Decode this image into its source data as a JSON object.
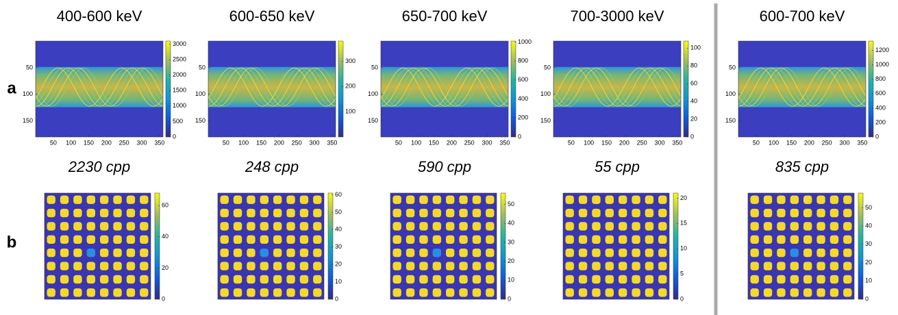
{
  "row_labels": [
    "a",
    "b"
  ],
  "columns": [
    {
      "title": "400-600 keV",
      "sinogram": {
        "xlim": [
          0,
          360
        ],
        "ylim": [
          0,
          180
        ],
        "xticks": [
          50,
          100,
          150,
          200,
          250,
          300,
          350
        ],
        "yticks": [
          50,
          100,
          150
        ],
        "colorbar": {
          "lim": [
            0,
            3100
          ],
          "ticks": [
            0,
            500,
            1000,
            1500,
            2000,
            2500,
            3000
          ]
        }
      },
      "count_label": "2230 cpp",
      "image": {
        "colorbar": {
          "lim": [
            0,
            68
          ],
          "ticks": [
            0,
            20,
            40,
            60
          ]
        }
      }
    },
    {
      "title": "600-650 keV",
      "sinogram": {
        "xlim": [
          0,
          360
        ],
        "ylim": [
          0,
          180
        ],
        "xticks": [
          50,
          100,
          150,
          200,
          250,
          300,
          350
        ],
        "yticks": [
          50,
          100,
          150
        ],
        "colorbar": {
          "lim": [
            0,
            380
          ],
          "ticks": [
            100,
            200,
            300
          ]
        }
      },
      "count_label": "248 cpp",
      "image": {
        "colorbar": {
          "lim": [
            0,
            61
          ],
          "ticks": [
            0,
            10,
            20,
            30,
            40,
            50,
            60
          ]
        }
      }
    },
    {
      "title": "650-700 keV",
      "sinogram": {
        "xlim": [
          0,
          360
        ],
        "ylim": [
          0,
          180
        ],
        "xticks": [
          50,
          100,
          150,
          200,
          250,
          300,
          350
        ],
        "yticks": [
          50,
          100,
          150
        ],
        "colorbar": {
          "lim": [
            0,
            1010
          ],
          "ticks": [
            0,
            200,
            400,
            600,
            800,
            1000
          ]
        }
      },
      "count_label": "590 cpp",
      "image": {
        "colorbar": {
          "lim": [
            0,
            56
          ],
          "ticks": [
            0,
            10,
            20,
            30,
            40,
            50
          ]
        }
      }
    },
    {
      "title": "700-3000 keV",
      "sinogram": {
        "xlim": [
          0,
          360
        ],
        "ylim": [
          0,
          180
        ],
        "xticks": [
          50,
          100,
          150,
          200,
          250,
          300,
          350
        ],
        "yticks": [
          50,
          100,
          150
        ],
        "colorbar": {
          "lim": [
            0,
            108
          ],
          "ticks": [
            0,
            20,
            40,
            60,
            80,
            100
          ]
        }
      },
      "count_label": "55 cpp",
      "image": {
        "colorbar": {
          "lim": [
            0,
            21
          ],
          "ticks": [
            0,
            5,
            10,
            15,
            20
          ]
        }
      }
    },
    {
      "title": "600-700 keV",
      "sinogram": {
        "xlim": [
          0,
          360
        ],
        "ylim": [
          0,
          180
        ],
        "xticks": [
          50,
          100,
          150,
          200,
          250,
          300,
          350
        ],
        "yticks": [
          50,
          100,
          150
        ],
        "colorbar": {
          "lim": [
            0,
            1330
          ],
          "ticks": [
            0,
            200,
            400,
            600,
            800,
            1000,
            1200
          ]
        }
      },
      "count_label": "835 cpp",
      "image": {
        "colorbar": {
          "lim": [
            0,
            58
          ],
          "ticks": [
            0,
            10,
            20,
            30,
            40,
            50
          ]
        }
      }
    }
  ]
}
